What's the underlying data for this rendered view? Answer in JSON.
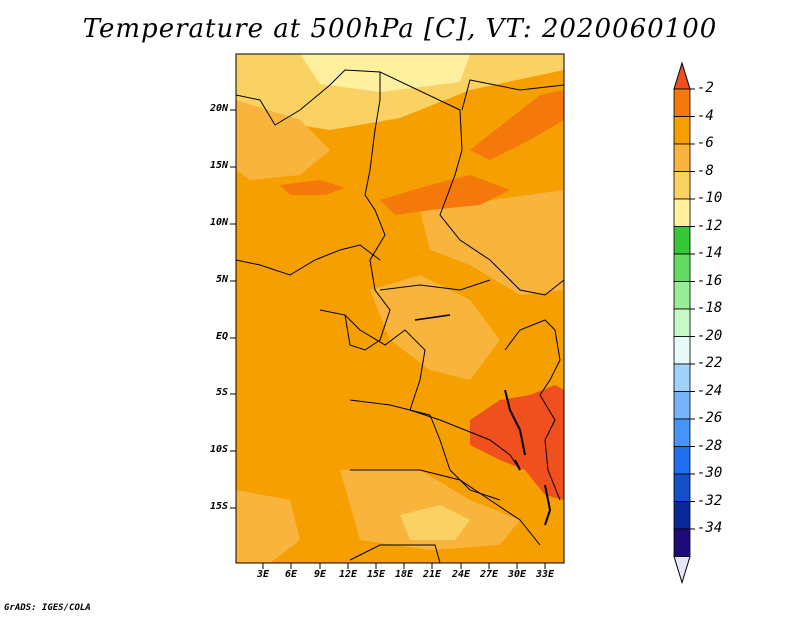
{
  "title": "Temperature at 500hPa [C], VT: 2020060100",
  "footer": "GrADS: IGES/COLA",
  "map": {
    "lat_labels": [
      "20N",
      "15N",
      "10N",
      "5N",
      "EQ",
      "5S",
      "10S",
      "15S"
    ],
    "lon_labels": [
      "3E",
      "6E",
      "9E",
      "12E",
      "15E",
      "18E",
      "21E",
      "24E",
      "27E",
      "30E",
      "33E"
    ]
  },
  "colorbar": {
    "labels": [
      "-2",
      "-4",
      "-6",
      "-8",
      "-10",
      "-12",
      "-14",
      "-16",
      "-18",
      "-20",
      "-22",
      "-24",
      "-26",
      "-28",
      "-30",
      "-32",
      "-34"
    ],
    "colors": [
      "#f0501e",
      "#f5780a",
      "#f5a000",
      "#f8b43c",
      "#fad264",
      "#fff0a0",
      "#37c837",
      "#64dc64",
      "#96ee96",
      "#c8fac8",
      "#e6fafa",
      "#a0d2fa",
      "#78b4fa",
      "#4696fa",
      "#1e6ef0",
      "#1450c8",
      "#0a2896",
      "#1e0a78",
      "#e6e6fa"
    ]
  },
  "colors": {
    "field_base": "#f5a000",
    "field_warm_light": "#f8b43c",
    "field_pale": "#fad264",
    "field_hot": "#f5780a",
    "field_hottest": "#f0501e"
  }
}
